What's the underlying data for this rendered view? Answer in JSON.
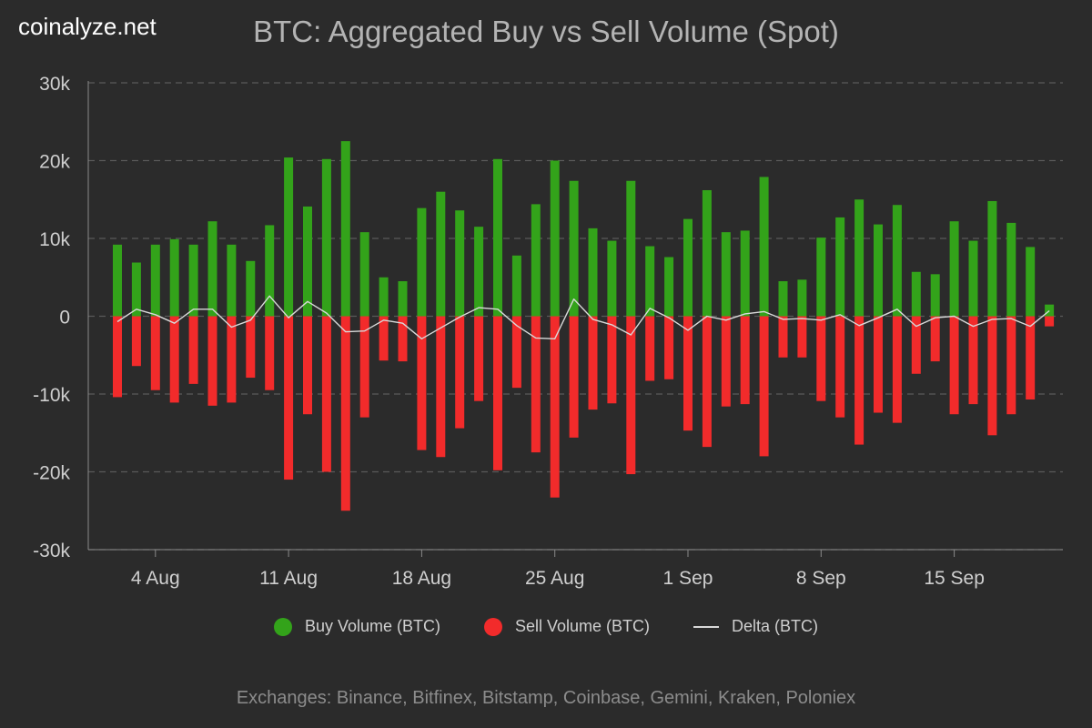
{
  "brand": "coinalyze.net",
  "footer": "Exchanges: Binance, Bitfinex, Bitstamp, Coinbase, Gemini, Kraken, Poloniex",
  "colors": {
    "background": "#2b2b2b",
    "buy": "#33a31a",
    "sell": "#f22b2b",
    "delta": "#d9d9d9",
    "grid": "#5a5a5a",
    "text": "#cfcfcf"
  },
  "chart_data": {
    "type": "bar",
    "title": "BTC: Aggregated Buy vs Sell Volume (Spot)",
    "ylim": [
      -30000,
      30000
    ],
    "yticks": [
      {
        "value": 30000,
        "label": "30k"
      },
      {
        "value": 20000,
        "label": "20k"
      },
      {
        "value": 10000,
        "label": "10k"
      },
      {
        "value": 0,
        "label": "0"
      },
      {
        "value": -10000,
        "label": "-10k"
      },
      {
        "value": -20000,
        "label": "-20k"
      },
      {
        "value": -30000,
        "label": "-30k"
      }
    ],
    "x": [
      "2024-08-01",
      "2024-08-02",
      "2024-08-03",
      "2024-08-04",
      "2024-08-05",
      "2024-08-06",
      "2024-08-07",
      "2024-08-08",
      "2024-08-09",
      "2024-08-10",
      "2024-08-11",
      "2024-08-12",
      "2024-08-13",
      "2024-08-14",
      "2024-08-15",
      "2024-08-16",
      "2024-08-17",
      "2024-08-18",
      "2024-08-19",
      "2024-08-20",
      "2024-08-21",
      "2024-08-22",
      "2024-08-23",
      "2024-08-24",
      "2024-08-25",
      "2024-08-26",
      "2024-08-27",
      "2024-08-28",
      "2024-08-29",
      "2024-08-30",
      "2024-08-31",
      "2024-09-01",
      "2024-09-02",
      "2024-09-03",
      "2024-09-04",
      "2024-09-05",
      "2024-09-06",
      "2024-09-07",
      "2024-09-08",
      "2024-09-09",
      "2024-09-10",
      "2024-09-11",
      "2024-09-12",
      "2024-09-13",
      "2024-09-14",
      "2024-09-15",
      "2024-09-16",
      "2024-09-17",
      "2024-09-18",
      "2024-09-19",
      "2024-09-20"
    ],
    "xticks": [
      {
        "index": 2,
        "label": "4 Aug"
      },
      {
        "index": 9,
        "label": "11 Aug"
      },
      {
        "index": 16,
        "label": "18 Aug"
      },
      {
        "index": 23,
        "label": "25 Aug"
      },
      {
        "index": 30,
        "label": "1 Sep"
      },
      {
        "index": 37,
        "label": "8 Sep"
      },
      {
        "index": 44,
        "label": "15 Sep"
      }
    ],
    "series": [
      {
        "name": "Buy Volume (BTC)",
        "type": "bar",
        "values": [
          9200,
          6900,
          9200,
          9900,
          9200,
          12200,
          9200,
          7100,
          11700,
          20400,
          14100,
          20200,
          22500,
          10800,
          5000,
          4500,
          13900,
          16000,
          13600,
          11500,
          20200,
          7800,
          14400,
          20000,
          17400,
          11300,
          9700,
          17400,
          9000,
          7600,
          12500,
          16200,
          10800,
          11000,
          17900,
          4500,
          4700,
          10100,
          12700,
          15000,
          11800,
          14300,
          5700,
          5400,
          12200,
          9700,
          14800,
          12000,
          8900,
          1500,
          0
        ]
      },
      {
        "name": "Sell Volume (BTC)",
        "type": "bar",
        "values": [
          -10400,
          -6400,
          -9500,
          -11100,
          -8700,
          -11500,
          -11100,
          -7900,
          -9500,
          -21000,
          -12600,
          -20000,
          -25000,
          -13000,
          -5700,
          -5800,
          -17200,
          -18100,
          -14400,
          -10900,
          -19800,
          -9200,
          -17500,
          -23300,
          -15600,
          -12000,
          -11200,
          -20300,
          -8300,
          -8100,
          -14700,
          -16800,
          -11600,
          -11300,
          -18000,
          -5300,
          -5300,
          -10900,
          -13000,
          -16500,
          -12400,
          -13700,
          -7400,
          -5800,
          -12600,
          -11300,
          -15300,
          -12600,
          -10700,
          -1300,
          0
        ]
      },
      {
        "name": "Delta (BTC)",
        "type": "line",
        "values": [
          -700,
          900,
          200,
          -900,
          900,
          900,
          -1400,
          -500,
          2600,
          -200,
          1900,
          400,
          -2000,
          -1900,
          -500,
          -900,
          -2900,
          -1500,
          -100,
          1100,
          900,
          -1200,
          -2800,
          -2900,
          2200,
          -400,
          -1100,
          -2400,
          1000,
          -200,
          -1800,
          0,
          -500,
          300,
          600,
          -400,
          -300,
          -500,
          200,
          -1200,
          -200,
          900,
          -1300,
          -200,
          0,
          -1300,
          -400,
          -300,
          -1300,
          700,
          null
        ]
      }
    ],
    "grid": true,
    "legend_position": "bottom"
  }
}
